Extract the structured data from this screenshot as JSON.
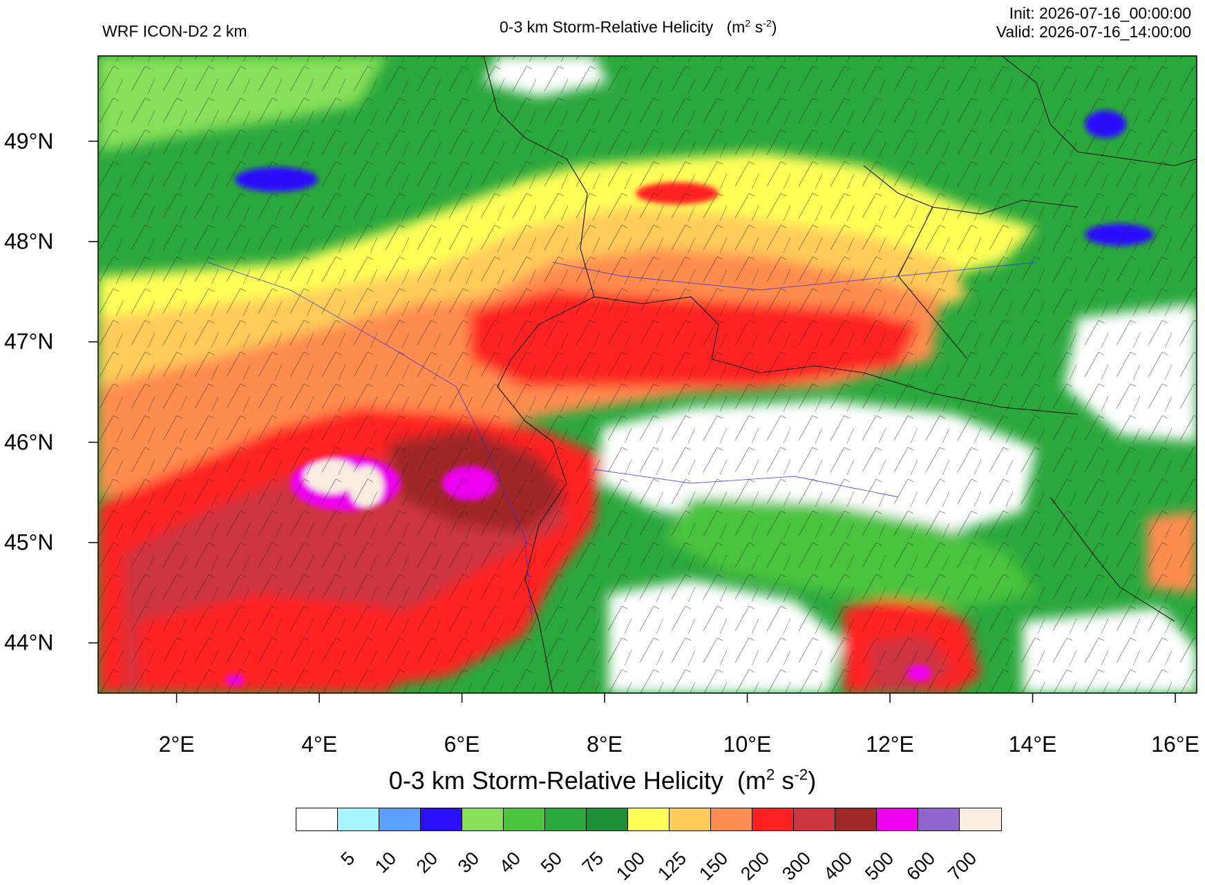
{
  "header": {
    "model": "WRF ICON-D2 2 km",
    "title_main": "0-3 km Storm-Relative Helicity",
    "title_units_base": "(m",
    "title_units_exp1": "2",
    "title_units_mid": " s",
    "title_units_exp2": "-2",
    "title_units_end": ")",
    "init": "Init: 2026-07-16_00:00:00",
    "valid": "Valid: 2026-07-16_14:00:00"
  },
  "map": {
    "lat_labels": [
      "49°N",
      "48°N",
      "47°N",
      "46°N",
      "45°N",
      "44°N"
    ],
    "lon_labels": [
      "2°E",
      "4°E",
      "6°E",
      "8°E",
      "10°E",
      "12°E",
      "14°E",
      "16°E"
    ],
    "lat_values": [
      49,
      48,
      47,
      46,
      45,
      44
    ],
    "lon_values": [
      2,
      4,
      6,
      8,
      10,
      12,
      14,
      16
    ],
    "extent": {
      "lon_min": 0.9,
      "lon_max": 16.3,
      "lat_min": 43.5,
      "lat_max": 49.85
    },
    "field_regions": [
      {
        "desc": "high SRH band over Alps / southeastern France",
        "level": "300"
      },
      {
        "desc": "peak over western Alps",
        "level": "500"
      },
      {
        "desc": "Po valley low values",
        "level": "5"
      },
      {
        "desc": "northern plains",
        "level": "75"
      }
    ]
  },
  "colorbar": {
    "title_main": "0-3 km Storm-Relative Helicity",
    "title_units_base": "(m",
    "title_units_exp1": "2",
    "title_units_mid": " s",
    "title_units_exp2": "-2",
    "title_units_end": ")",
    "colors": [
      "#ffffff",
      "#a6f6ff",
      "#5aa0ff",
      "#2a10ff",
      "#86e05a",
      "#4cc43c",
      "#2aa83c",
      "#1e8f36",
      "#ffff58",
      "#ffcc5a",
      "#ff8c50",
      "#ff2020",
      "#cc3440",
      "#a02828",
      "#ee00ee",
      "#9066cc",
      "#f8ece0"
    ],
    "labels": [
      "5",
      "10",
      "20",
      "30",
      "40",
      "50",
      "75",
      "100",
      "125",
      "150",
      "200",
      "300",
      "400",
      "500",
      "600",
      "700"
    ]
  }
}
